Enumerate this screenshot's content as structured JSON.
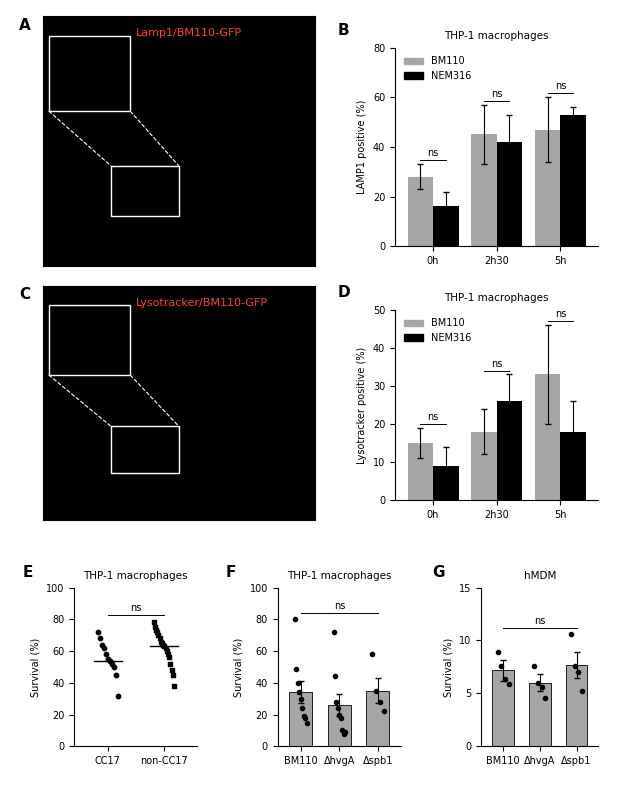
{
  "chart_data": [
    {
      "panel": "A",
      "type": "image",
      "title": "Lamp1/BM110-GFP"
    },
    {
      "panel": "B",
      "type": "bar",
      "title": "THP-1 macrophages",
      "y_label": "LAMP1 positive (%)",
      "categories": [
        "0h",
        "2h30",
        "5h"
      ],
      "series": [
        {
          "name": "BM110",
          "color": "#a6a6a6",
          "values": [
            28,
            45,
            47
          ],
          "errors": [
            5,
            12,
            13
          ]
        },
        {
          "name": "NEM316",
          "color": "#000000",
          "values": [
            16,
            42,
            53
          ],
          "errors": [
            6,
            11,
            3
          ]
        }
      ],
      "ylim": [
        0,
        80
      ],
      "yticks": [
        0,
        20,
        40,
        60,
        80
      ],
      "legend": "upper left",
      "annotations": [
        "ns",
        "ns",
        "ns"
      ]
    },
    {
      "panel": "C",
      "type": "image",
      "title": "Lysotracker/BM110-GFP"
    },
    {
      "panel": "D",
      "type": "bar",
      "title": "THP-1 macrophages",
      "y_label": "Lysotracker positive (%)",
      "categories": [
        "0h",
        "2h30",
        "5h"
      ],
      "series": [
        {
          "name": "BM110",
          "color": "#a6a6a6",
          "values": [
            15,
            18,
            33
          ],
          "errors": [
            4,
            6,
            13
          ]
        },
        {
          "name": "NEM316",
          "color": "#000000",
          "values": [
            9,
            26,
            18
          ],
          "errors": [
            5,
            7,
            8
          ]
        }
      ],
      "ylim": [
        0,
        50
      ],
      "yticks": [
        0,
        10,
        20,
        30,
        40,
        50
      ],
      "legend": "upper left",
      "annotations": [
        "ns",
        "ns",
        "ns"
      ]
    },
    {
      "panel": "E",
      "type": "scatter",
      "title": "THP-1 macrophages",
      "y_label": "Survival (%)",
      "categories": [
        "CC17",
        "non-CC17"
      ],
      "points": [
        [
          72,
          68,
          64,
          62,
          58,
          55,
          54,
          52,
          50,
          45,
          32
        ],
        [
          78,
          75,
          73,
          72,
          70,
          68,
          66,
          65,
          64,
          63,
          62,
          60,
          58,
          56,
          52,
          48,
          45,
          38
        ]
      ],
      "means": [
        54,
        63
      ],
      "color": "#000000",
      "ylim": [
        0,
        100
      ],
      "yticks": [
        0,
        20,
        40,
        60,
        80,
        100
      ],
      "annotations": [
        "ns"
      ]
    },
    {
      "panel": "F",
      "type": "bar",
      "title": "THP-1 macrophages",
      "y_label": "Survival (%)",
      "categories": [
        "BM110",
        "ΔhvgA",
        "Δspb1"
      ],
      "values": [
        34,
        26,
        35
      ],
      "errors": [
        7,
        7,
        8
      ],
      "color": "#a6a6a6",
      "points": [
        [
          80,
          49,
          40,
          34,
          30,
          24,
          19,
          18,
          15
        ],
        [
          72,
          44,
          28,
          24,
          20,
          18,
          10,
          8,
          9
        ],
        [
          58,
          35,
          28,
          22
        ]
      ],
      "ylim": [
        0,
        100
      ],
      "yticks": [
        0,
        20,
        40,
        60,
        80,
        100
      ],
      "annotations": [
        "ns"
      ]
    },
    {
      "panel": "G",
      "type": "bar",
      "title": "hMDM",
      "y_label": "Survival (%)",
      "categories": [
        "BM110",
        "ΔhvgA",
        "Δspb1"
      ],
      "values": [
        7.2,
        6.0,
        7.7
      ],
      "errors": [
        1.0,
        0.8,
        1.2
      ],
      "color": "#a6a6a6",
      "points": [
        [
          8.9,
          7.6,
          6.4,
          5.9
        ],
        [
          7.6,
          6.0,
          5.6,
          4.6
        ],
        [
          10.6,
          7.6,
          7.0,
          5.2
        ]
      ],
      "ylim": [
        0,
        15
      ],
      "yticks": [
        0,
        5,
        10,
        15
      ],
      "annotations": [
        "ns"
      ]
    }
  ]
}
